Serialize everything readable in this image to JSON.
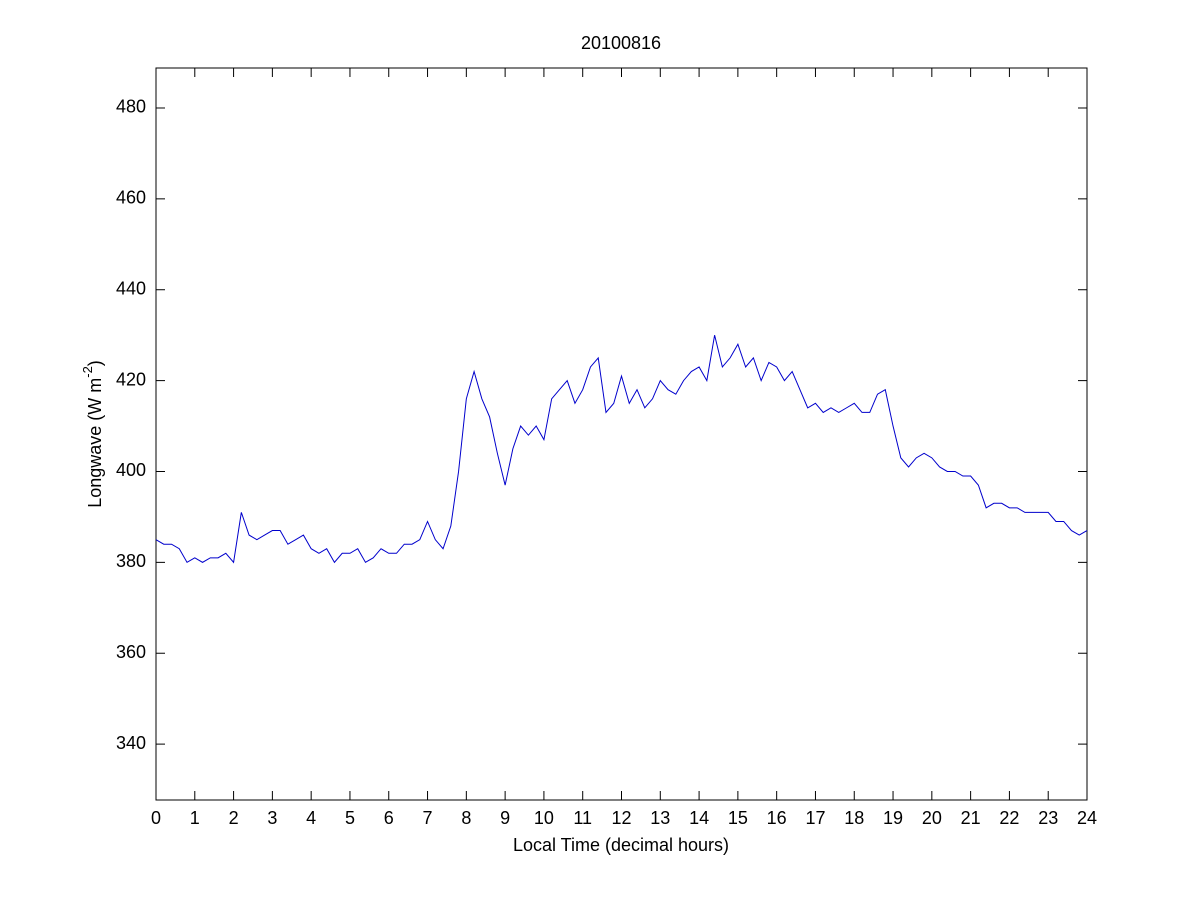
{
  "chart_data": {
    "type": "line",
    "title": "20100816",
    "x_label": "Local Time (decimal hours)",
    "y_label": {
      "text": "Longwave (W m",
      "superscript": "-2",
      "suffix": ")"
    },
    "xlim": [
      0,
      24
    ],
    "ylim": [
      327.7,
      488.8
    ],
    "xticks": [
      0,
      1,
      2,
      3,
      4,
      5,
      6,
      7,
      8,
      9,
      10,
      11,
      12,
      13,
      14,
      15,
      16,
      17,
      18,
      19,
      20,
      21,
      22,
      23,
      24
    ],
    "yticks": [
      340,
      360,
      380,
      400,
      420,
      440,
      460,
      480
    ],
    "grid": false,
    "x": [
      0,
      0.2,
      0.4,
      0.6,
      0.8,
      1,
      1.2,
      1.4,
      1.6,
      1.8,
      2,
      2.2,
      2.4,
      2.6,
      2.8,
      3,
      3.2,
      3.4,
      3.6,
      3.8,
      4,
      4.2,
      4.4,
      4.6,
      4.8,
      5,
      5.2,
      5.4,
      5.6,
      5.8,
      6,
      6.2,
      6.4,
      6.6,
      6.8,
      7,
      7.2,
      7.4,
      7.6,
      7.8,
      8,
      8.2,
      8.4,
      8.6,
      8.8,
      9,
      9.2,
      9.4,
      9.6,
      9.8,
      10,
      10.2,
      10.4,
      10.6,
      10.8,
      11,
      11.2,
      11.4,
      11.6,
      11.8,
      12,
      12.2,
      12.4,
      12.6,
      12.8,
      13,
      13.2,
      13.4,
      13.6,
      13.8,
      14,
      14.2,
      14.4,
      14.6,
      14.8,
      15,
      15.2,
      15.4,
      15.6,
      15.8,
      16,
      16.2,
      16.4,
      16.6,
      16.8,
      17,
      17.2,
      17.4,
      17.6,
      17.8,
      18,
      18.2,
      18.4,
      18.6,
      18.8,
      19,
      19.2,
      19.4,
      19.6,
      19.8,
      20,
      20.2,
      20.4,
      20.6,
      20.8,
      21,
      21.2,
      21.4,
      21.6,
      21.8,
      22,
      22.2,
      22.4,
      22.6,
      22.8,
      23,
      23.2,
      23.4,
      23.6,
      23.8,
      24
    ],
    "series": [
      {
        "color": "#0000cc",
        "values": [
          385,
          384,
          384,
          383,
          380,
          381,
          380,
          381,
          381,
          382,
          380,
          391,
          386,
          385,
          386,
          387,
          387,
          384,
          385,
          386,
          383,
          382,
          383,
          380,
          382,
          382,
          383,
          380,
          381,
          383,
          382,
          382,
          384,
          384,
          385,
          389,
          385,
          383,
          388,
          400,
          416,
          422,
          416,
          412,
          404,
          397,
          405,
          410,
          408,
          410,
          407,
          416,
          418,
          420,
          415,
          418,
          423,
          425,
          413,
          415,
          421,
          415,
          418,
          414,
          416,
          420,
          418,
          417,
          420,
          422,
          423,
          420,
          430,
          423,
          425,
          428,
          423,
          425,
          420,
          424,
          423,
          420,
          422,
          418,
          414,
          415,
          413,
          414,
          413,
          414,
          415,
          413,
          413,
          417,
          418,
          410,
          403,
          401,
          403,
          404,
          403,
          401,
          400,
          400,
          399,
          399,
          397,
          392,
          393,
          393,
          392,
          392,
          391,
          391,
          391,
          391,
          389,
          389,
          387,
          386,
          387
        ]
      }
    ]
  }
}
